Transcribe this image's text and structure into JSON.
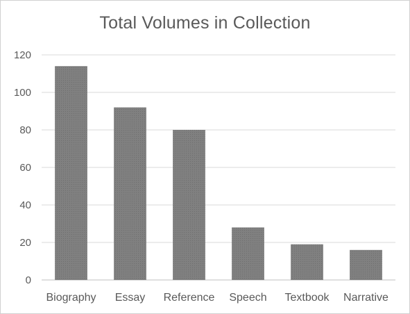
{
  "chart_data": {
    "type": "bar",
    "title": "Total Volumes in Collection",
    "categories": [
      "Biography",
      "Essay",
      "Reference",
      "Speech",
      "Textbook",
      "Narrative"
    ],
    "values": [
      114,
      92,
      80,
      28,
      19,
      16
    ],
    "xlabel": "",
    "ylabel": "",
    "ylim": [
      0,
      120
    ],
    "yticks": [
      "0",
      "20",
      "40",
      "60",
      "80",
      "100",
      "120"
    ],
    "grid": true,
    "legend": "none",
    "colors": {
      "bar": "#7f7f7f",
      "grid": "#d9d9d9",
      "text": "#595959"
    }
  }
}
